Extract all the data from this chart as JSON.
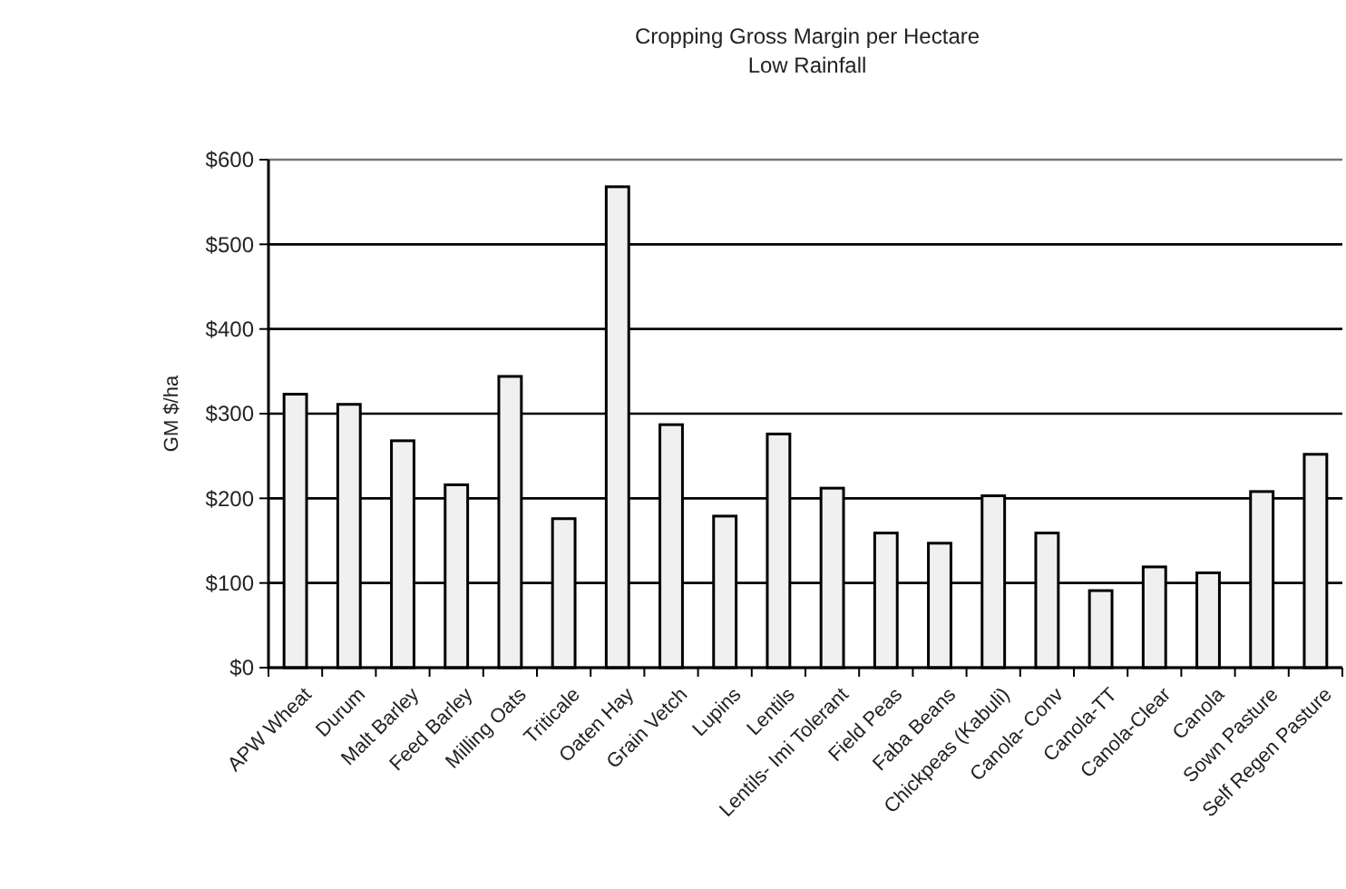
{
  "chart_data": {
    "type": "bar",
    "title": "Cropping Gross Margin per Hectare",
    "subtitle": "Low Rainfall",
    "ylabel": "GM $/ha",
    "categories": [
      "APW Wheat",
      "Durum",
      "Malt Barley",
      "Feed Barley",
      "Milling Oats",
      "Triticale",
      "Oaten Hay",
      "Grain Vetch",
      "Lupins",
      "Lentils",
      "Lentils- Imi Tolerant",
      "Field Peas",
      "Faba Beans",
      "Chickpeas (Kabuli)",
      "Canola- Conv",
      "Canola-TT",
      "Canola-Clear",
      "Canola",
      "Sown Pasture",
      "Self Regen Pasture"
    ],
    "values": [
      323,
      311,
      268,
      216,
      344,
      176,
      568,
      287,
      179,
      276,
      212,
      159,
      147,
      203,
      159,
      91,
      119,
      112,
      208,
      252
    ],
    "color": "#f0f0f0",
    "ylim": [
      0,
      600
    ],
    "yticks": [
      {
        "value": 0,
        "label": "$0"
      },
      {
        "value": 100,
        "label": "$100"
      },
      {
        "value": 200,
        "label": "$200"
      },
      {
        "value": 300,
        "label": "$300"
      },
      {
        "value": 400,
        "label": "$400"
      },
      {
        "value": 500,
        "label": "$500"
      },
      {
        "value": 600,
        "label": "$600"
      }
    ],
    "grid": "y"
  }
}
